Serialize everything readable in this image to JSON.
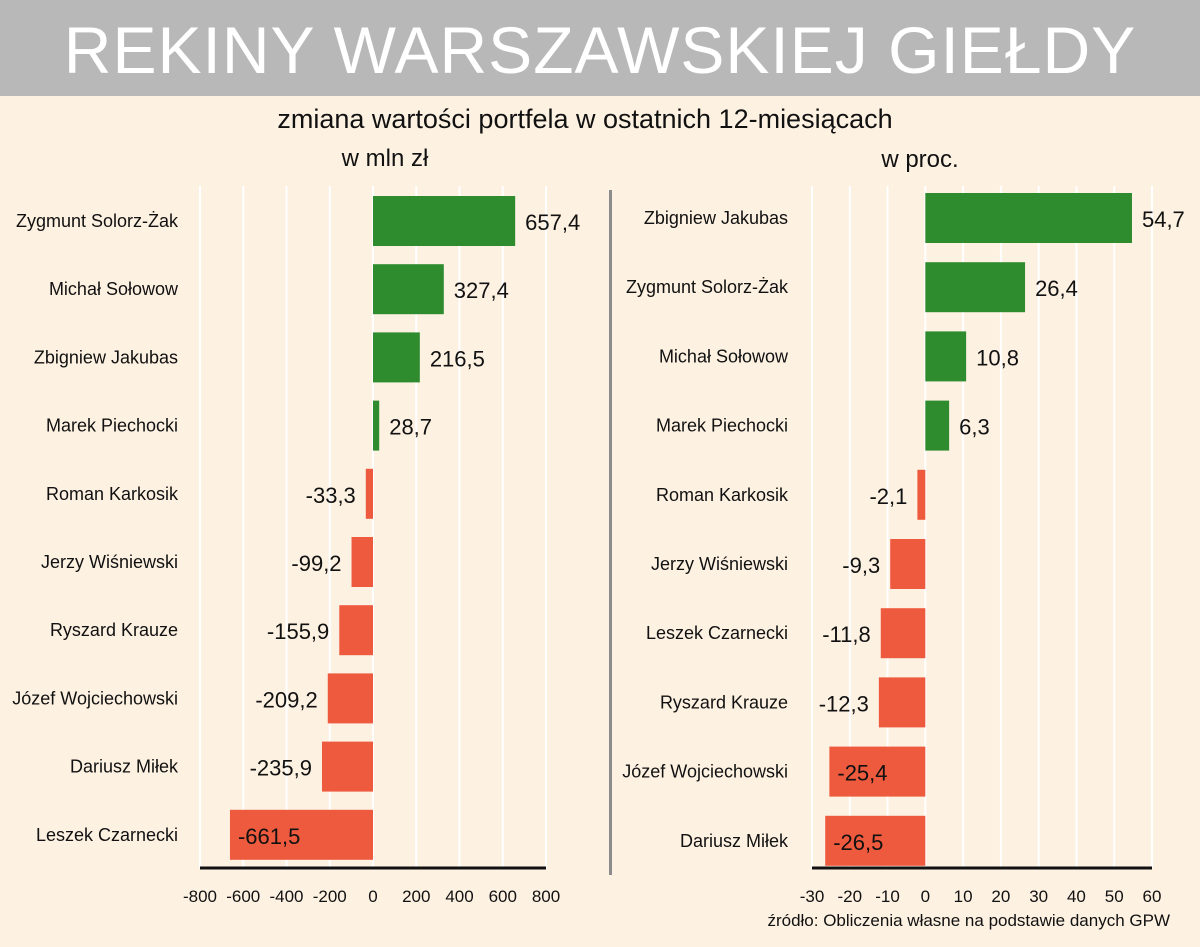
{
  "header": {
    "title": "REKINY WARSZAWSKIEJ GIEŁDY",
    "subtitle": "zmiana wartości portfela w ostatnich 12-miesiącach",
    "unit_left": "w mln zł",
    "unit_right": "w proc."
  },
  "source": "źródło: Obliczenia własne na podstawie danych GPW",
  "colors": {
    "background": "#fdf1e2",
    "banner": "#b8b8b8",
    "positive": "#2e8b2e",
    "negative": "#ee5a3d",
    "gridline": "#ffffff",
    "axis": "#111111"
  },
  "chart_data": [
    {
      "type": "bar",
      "orientation": "horizontal",
      "title": "w mln zł",
      "categories": [
        "Zygmunt Solorz-Żak",
        "Michał Sołowow",
        "Zbigniew Jakubas",
        "Marek Piechocki",
        "Roman Karkosik",
        "Jerzy Wiśniewski",
        "Ryszard Krauze",
        "Józef Wojciechowski",
        "Dariusz Miłek",
        "Leszek Czarnecki"
      ],
      "values": [
        657.4,
        327.4,
        216.5,
        28.7,
        -33.3,
        -99.2,
        -155.9,
        -209.2,
        -235.9,
        -661.5
      ],
      "value_labels": [
        "657,4",
        "327,4",
        "216,5",
        "28,7",
        "-33,3",
        "-99,2",
        "-155,9",
        "-209,2",
        "-235,9",
        "-661,5"
      ],
      "xlim": [
        -800,
        800
      ],
      "ticks": [
        -800,
        -600,
        -400,
        -200,
        0,
        200,
        400,
        600,
        800
      ],
      "grid": true
    },
    {
      "type": "bar",
      "orientation": "horizontal",
      "title": "w proc.",
      "categories": [
        "Zbigniew Jakubas",
        "Zygmunt Solorz-Żak",
        "Michał Sołowow",
        "Marek Piechocki",
        "Roman Karkosik",
        "Jerzy Wiśniewski",
        "Leszek Czarnecki",
        "Ryszard Krauze",
        "Józef Wojciechowski",
        "Dariusz Miłek"
      ],
      "values": [
        54.7,
        26.4,
        10.8,
        6.3,
        -2.1,
        -9.3,
        -11.8,
        -12.3,
        -25.4,
        -26.5
      ],
      "value_labels": [
        "54,7",
        "26,4",
        "10,8",
        "6,3",
        "-2,1",
        "-9,3",
        "-11,8",
        "-12,3",
        "-25,4",
        "-26,5"
      ],
      "xlim": [
        -30,
        60
      ],
      "ticks": [
        -30,
        -20,
        -10,
        0,
        10,
        20,
        30,
        40,
        50,
        60
      ],
      "grid": true
    }
  ]
}
